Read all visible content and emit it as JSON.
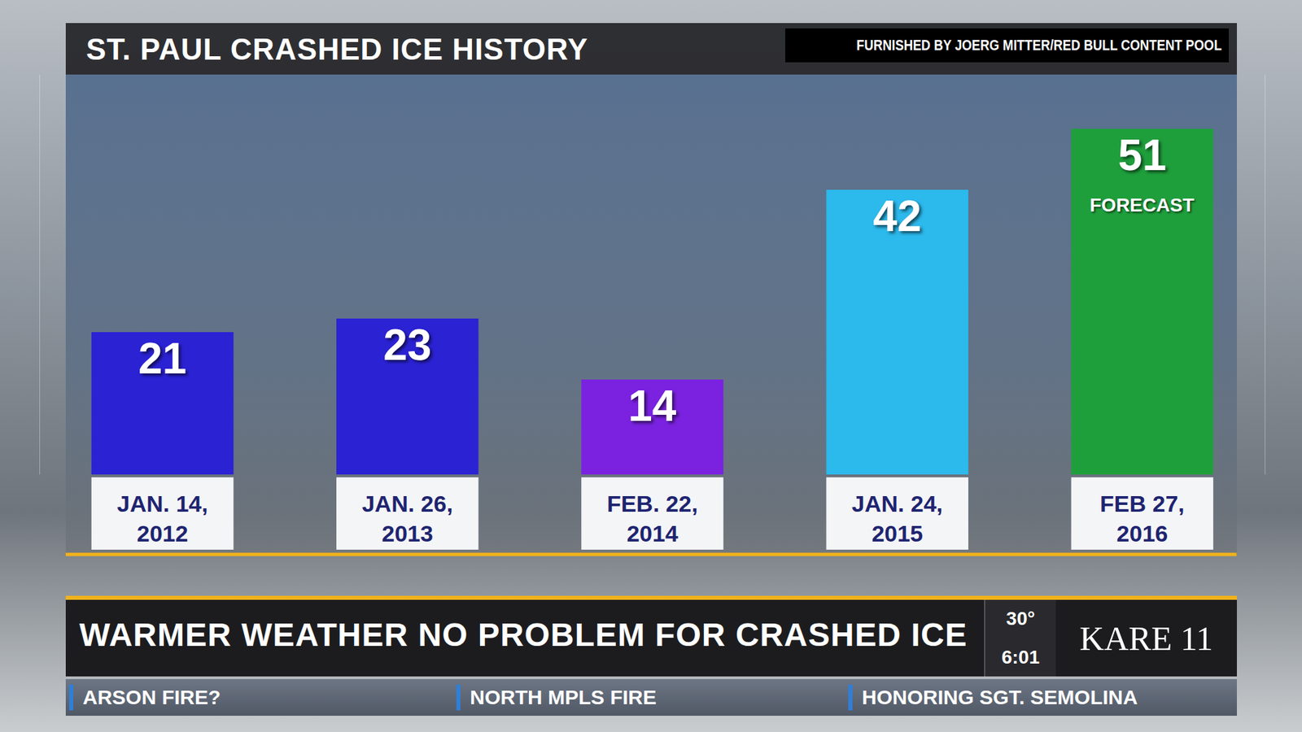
{
  "chart_data": {
    "type": "bar",
    "title": "ST. PAUL CRASHED ICE HISTORY",
    "source": "FURNISHED BY JOERG MITTER/RED BULL CONTENT POOL",
    "categories": [
      "JAN. 14, 2012",
      "JAN. 26, 2013",
      "FEB. 22, 2014",
      "JAN. 24, 2015",
      "FEB 27, 2016"
    ],
    "values": [
      21,
      23,
      14,
      42,
      51
    ],
    "colors": [
      "#2b22d4",
      "#2b22d4",
      "#7a22e0",
      "#2cb9ec",
      "#1f9f3c"
    ],
    "ylim": [
      0,
      59
    ],
    "data_labels": true,
    "tick_labels": "x",
    "annotations": [
      {
        "category": "FEB 27, 2016",
        "text": "FORECAST"
      }
    ]
  },
  "broadcast": {
    "headline": "WARMER WEATHER NO PROBLEM FOR CRASHED ICE",
    "temperature": "30°",
    "time": "6:01",
    "logo": "KARE 11",
    "ticker": [
      "ARSON FIRE?",
      "NORTH MPLS FIRE",
      "HONORING SGT. SEMOLINA"
    ]
  }
}
